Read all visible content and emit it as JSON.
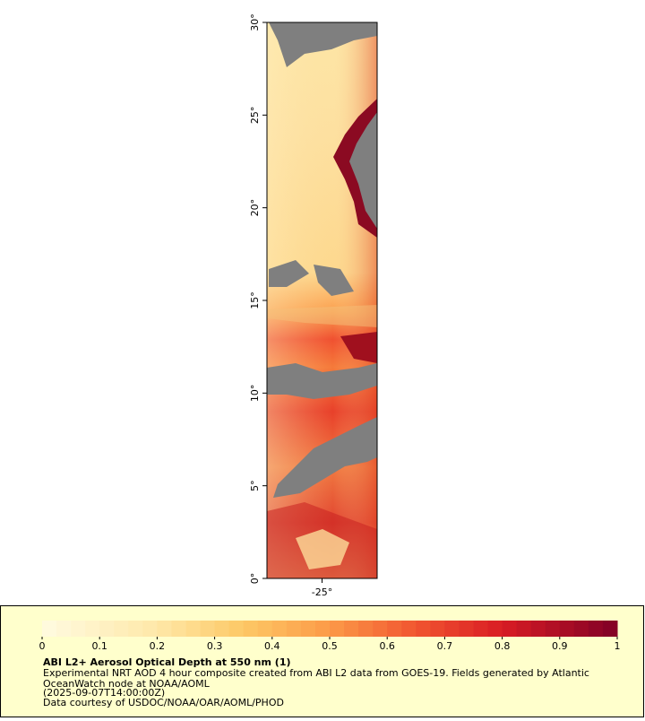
{
  "map": {
    "latlim": [
      0,
      30
    ],
    "lonlim": [
      -28,
      -22
    ],
    "lat_ticks": [
      {
        "value": 0,
        "label": "0°"
      },
      {
        "value": 5,
        "label": "5°"
      },
      {
        "value": 10,
        "label": "10°"
      },
      {
        "value": 15,
        "label": "15°"
      },
      {
        "value": 20,
        "label": "20°"
      },
      {
        "value": 25,
        "label": "25°"
      },
      {
        "value": 30,
        "label": "30°"
      }
    ],
    "lon_ticks": [
      {
        "value": -25,
        "label": "-25°"
      }
    ]
  },
  "colorbar": {
    "lim": [
      0,
      1
    ],
    "ticks": [
      0,
      0.1,
      0.2,
      0.3,
      0.4,
      0.5,
      0.6,
      0.7,
      0.8,
      0.9,
      1
    ],
    "color_stops": [
      {
        "value": 0,
        "color": "#fffbe0"
      },
      {
        "value": 0.2,
        "color": "#fee8a8"
      },
      {
        "value": 0.35,
        "color": "#fdc865"
      },
      {
        "value": 0.5,
        "color": "#fc9a48"
      },
      {
        "value": 0.65,
        "color": "#f15530"
      },
      {
        "value": 0.8,
        "color": "#d91c24"
      },
      {
        "value": 1,
        "color": "#800026"
      }
    ],
    "steps": 40
  },
  "caption": {
    "title": "ABI L2+ Aerosol Optical Depth at 550 nm (1)",
    "lines": [
      "Experimental NRT AOD 4 hour composite created from ABI L2 data from GOES-19. Fields generated by Atlantic",
      "OceanWatch node at NOAA/AOML",
      "(2025-09-07T14:00:00Z)",
      "Data courtesy of USDOC/NOAA/OAR/AOML/PHOD"
    ]
  }
}
